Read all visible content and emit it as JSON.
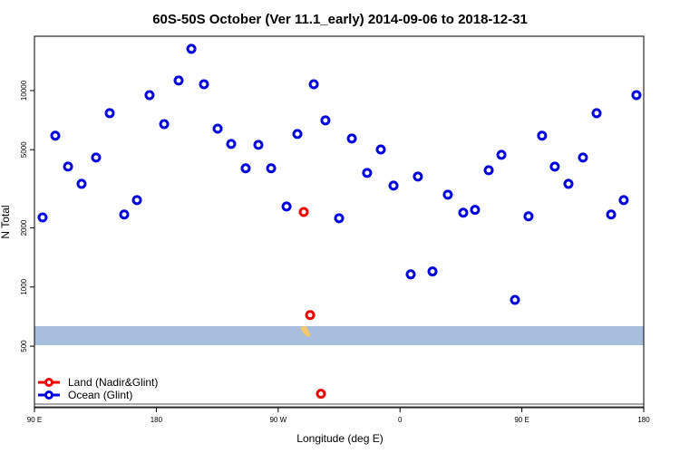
{
  "chart_data": {
    "type": "scatter",
    "title": "60S-50S October (Ver 11.1_early)   2014-09-06 to 2018-12-31",
    "x_label": "Longitude (deg E)",
    "y_label": "N Total",
    "log_y": true,
    "legend_position": "bottom-left",
    "xlim": [
      90,
      540
    ],
    "xticks": [
      {
        "value": 90,
        "label": "90 E"
      },
      {
        "value": 180,
        "label": "180"
      },
      {
        "value": 270,
        "label": "90 W"
      },
      {
        "value": 360,
        "label": "0"
      },
      {
        "value": 450,
        "label": "90 E"
      },
      {
        "value": 540,
        "label": "180"
      }
    ],
    "ylim": [
      243,
      18900
    ],
    "yticks": [
      500,
      1000,
      2000,
      5000,
      10000
    ],
    "series": [
      {
        "name": "Land (Nadir&Glint)",
        "color": "#ee0000",
        "x": [
          288.9,
          293.6,
          301.6
        ],
        "values": [
          2410,
          720,
          286
        ]
      },
      {
        "name": "Ocean (Glint)",
        "color": "#0000dd",
        "x": [
          96.0,
          105.4,
          114.8,
          124.8,
          135.5,
          145.6,
          156.3,
          165.7,
          175.0,
          185.8,
          196.5,
          205.9,
          215.2,
          225.3,
          235.3,
          246.0,
          255.4,
          264.8,
          276.2,
          284.2,
          296.3,
          304.9,
          315.0,
          324.4,
          335.7,
          345.8,
          355.2,
          367.9,
          373.2,
          384.0,
          395.3,
          406.7,
          415.4,
          425.5,
          434.9,
          444.9,
          454.9,
          464.9,
          474.3,
          484.4,
          495.1,
          505.2,
          515.9,
          525.2,
          534.6
        ],
        "values": [
          2260,
          5890,
          4100,
          3350,
          4560,
          7670,
          2340,
          2770,
          9480,
          6750,
          11250,
          16300,
          10770,
          6400,
          5350,
          4020,
          5290,
          4020,
          2570,
          6010,
          10770,
          7050,
          2240,
          5700,
          3810,
          5010,
          3280,
          1160,
          3650,
          1200,
          2950,
          2390,
          2470,
          3930,
          4710,
          860,
          2290,
          5890,
          4100,
          3350,
          4560,
          7670,
          2340,
          2770,
          9480
        ]
      }
    ]
  }
}
